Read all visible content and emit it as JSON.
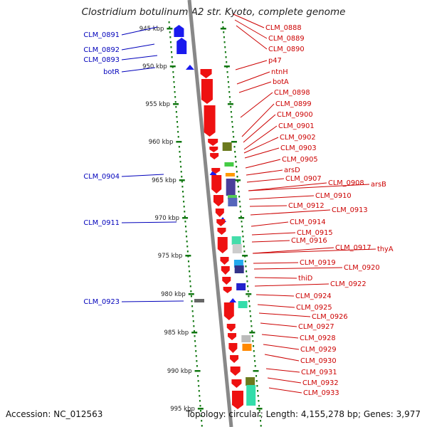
{
  "title": "Clostridium botulinum A2 str. Kyoto, complete genome",
  "footer": {
    "accession": "Accession: NC_012563",
    "summary": "Topology: circular; Length: 4,155,278 bp; Genes: 3,977"
  },
  "colors": {
    "forward_label": "#0000bb",
    "reverse_label": "#cc0000",
    "forward_feature": "#1a1aee",
    "reverse_feature": "#ee1111",
    "backbone": "#888888",
    "tick": "#117711"
  },
  "scale_labels": [
    "945 kbp",
    "950 kbp",
    "955 kbp",
    "960 kbp",
    "965 kbp",
    "970 kbp",
    "975 kbp",
    "980 kbp",
    "985 kbp",
    "990 kbp",
    "995 kbp"
  ],
  "forward_labels": [
    "CLM_0891",
    "CLM_0892",
    "CLM_0893",
    "botR",
    "CLM_0904",
    "CLM_0911",
    "CLM_0923"
  ],
  "reverse_labels": [
    "CLM_0888",
    "CLM_0889",
    "CLM_0890",
    "p47",
    "ntnH",
    "botA",
    "CLM_0898",
    "CLM_0899",
    "CLM_0900",
    "CLM_0901",
    "CLM_0902",
    "CLM_0903",
    "CLM_0905",
    "arsD",
    "CLM_0907",
    "CLM_0908",
    "arsB",
    "CLM_0910",
    "CLM_0912",
    "CLM_0913",
    "CLM_0914",
    "CLM_0915",
    "CLM_0916",
    "CLM_0917",
    "thyA",
    "CLM_0919",
    "CLM_0920",
    "thiD",
    "CLM_0922",
    "CLM_0924",
    "CLM_0925",
    "CLM_0926",
    "CLM_0927",
    "CLM_0928",
    "CLM_0929",
    "CLM_0930",
    "CLM_0931",
    "CLM_0932",
    "CLM_0933"
  ]
}
